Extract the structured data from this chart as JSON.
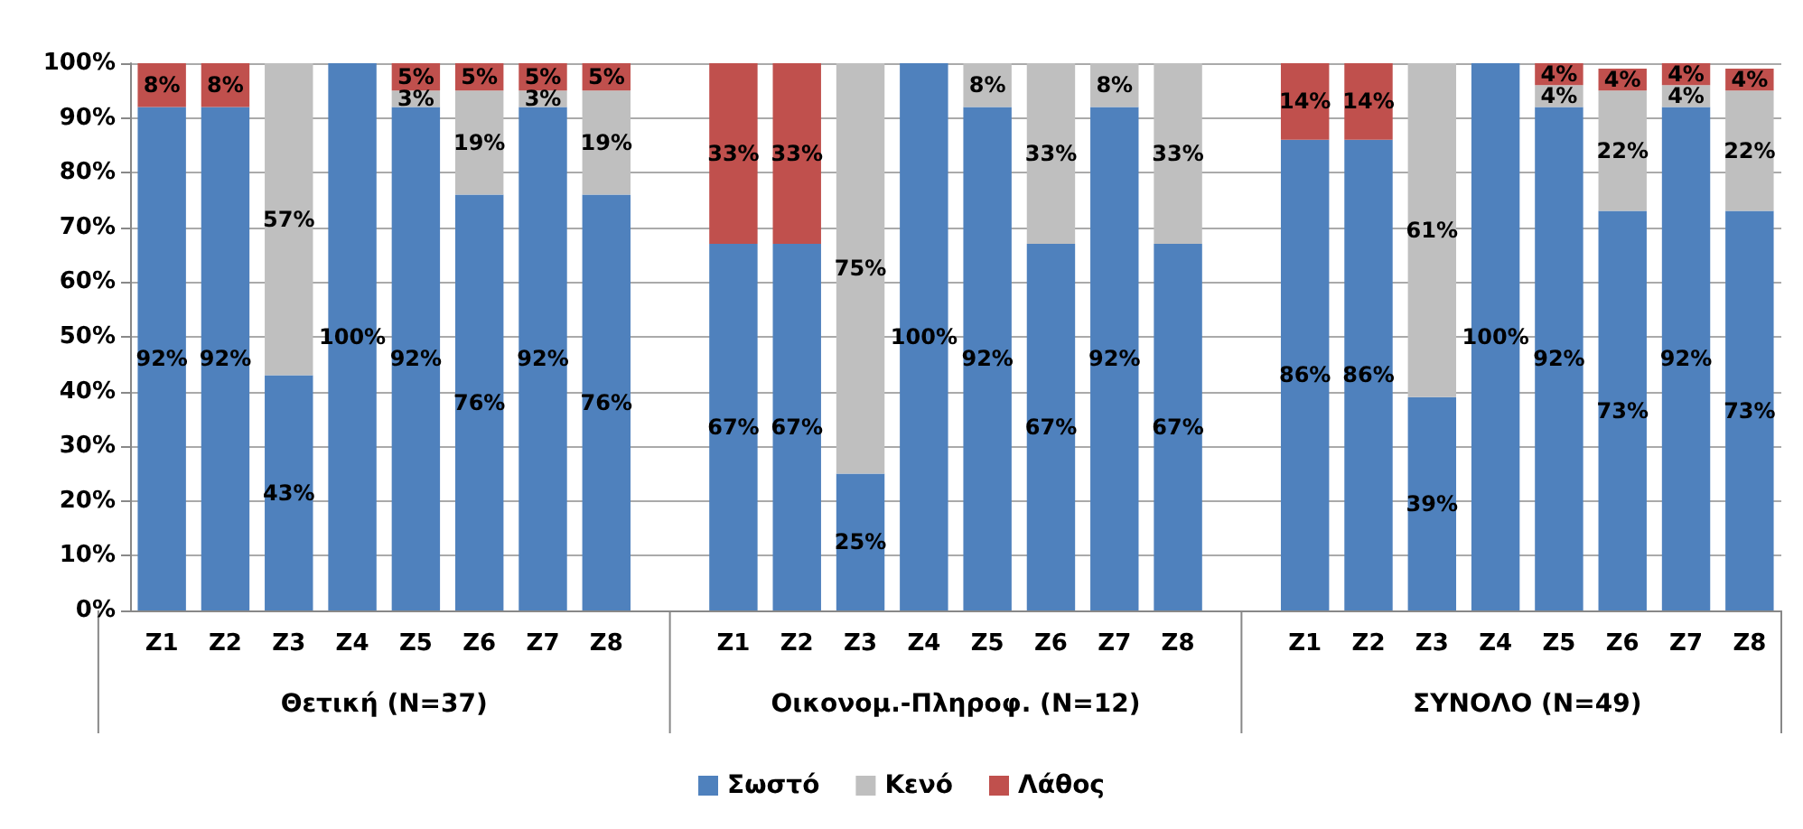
{
  "chart_data": {
    "type": "bar",
    "stacked": true,
    "categories": [
      "Ζ1",
      "Ζ2",
      "Ζ3",
      "Ζ4",
      "Ζ5",
      "Ζ6",
      "Ζ7",
      "Ζ8",
      null,
      "Ζ1",
      "Ζ2",
      "Ζ3",
      "Ζ4",
      "Ζ5",
      "Ζ6",
      "Ζ7",
      "Ζ8",
      null,
      "Ζ1",
      "Ζ2",
      "Ζ3",
      "Ζ4",
      "Ζ5",
      "Ζ6",
      "Ζ7",
      "Ζ8"
    ],
    "series": [
      {
        "name": "Σωστό",
        "color": "#4f81bd",
        "values": [
          92,
          92,
          43,
          100,
          92,
          76,
          92,
          76,
          null,
          67,
          67,
          25,
          100,
          92,
          67,
          92,
          67,
          null,
          86,
          86,
          39,
          100,
          92,
          73,
          92,
          73
        ],
        "value_labels": [
          "92%",
          "92%",
          "43%",
          "100%",
          "92%",
          "76%",
          "92%",
          "76%",
          null,
          "67%",
          "67%",
          "25%",
          "100%",
          "92%",
          "67%",
          "92%",
          "67%",
          null,
          "86%",
          "86%",
          "39%",
          "100%",
          "92%",
          "73%",
          "92%",
          "73%"
        ]
      },
      {
        "name": "Κενό",
        "color": "#bfbfbf",
        "values": [
          0,
          0,
          57,
          0,
          3,
          19,
          3,
          19,
          null,
          0,
          0,
          75,
          0,
          8,
          33,
          8,
          33,
          null,
          0,
          0,
          61,
          0,
          4,
          22,
          4,
          22
        ],
        "value_labels": [
          null,
          null,
          "57%",
          null,
          "3%",
          "19%",
          "3%",
          "19%",
          null,
          null,
          null,
          "75%",
          null,
          "8%",
          "33%",
          "8%",
          "33%",
          null,
          null,
          null,
          "61%",
          null,
          "4%",
          "22%",
          "4%",
          "22%"
        ]
      },
      {
        "name": "Λάθος",
        "color": "#c0504d",
        "values": [
          8,
          8,
          0,
          0,
          5,
          5,
          5,
          5,
          null,
          33,
          33,
          0,
          0,
          0,
          0,
          0,
          0,
          null,
          14,
          14,
          0,
          0,
          4,
          4,
          4,
          4
        ],
        "value_labels": [
          "8%",
          "8%",
          null,
          null,
          "5%",
          "5%",
          "5%",
          "5%",
          null,
          "33%",
          "33%",
          null,
          null,
          null,
          null,
          null,
          null,
          null,
          "14%",
          "14%",
          null,
          null,
          "4%",
          "4%",
          "4%",
          "4%"
        ]
      }
    ],
    "ylim": [
      0,
      100
    ],
    "yticks": [
      {
        "value": 0,
        "label": "0%"
      },
      {
        "value": 10,
        "label": "10%"
      },
      {
        "value": 20,
        "label": "20%"
      },
      {
        "value": 30,
        "label": "30%"
      },
      {
        "value": 40,
        "label": "40%"
      },
      {
        "value": 50,
        "label": "50%"
      },
      {
        "value": 60,
        "label": "60%"
      },
      {
        "value": 70,
        "label": "70%"
      },
      {
        "value": 80,
        "label": "80%"
      },
      {
        "value": 90,
        "label": "90%"
      },
      {
        "value": 100,
        "label": "100%"
      }
    ],
    "grid": "y",
    "legend": "bottom",
    "annotations": [
      "Θετική (N=37)",
      "Οικονομ.-Πληροφ. (N=12)",
      "ΣΥΝΟΛΟ (N=49)"
    ]
  }
}
